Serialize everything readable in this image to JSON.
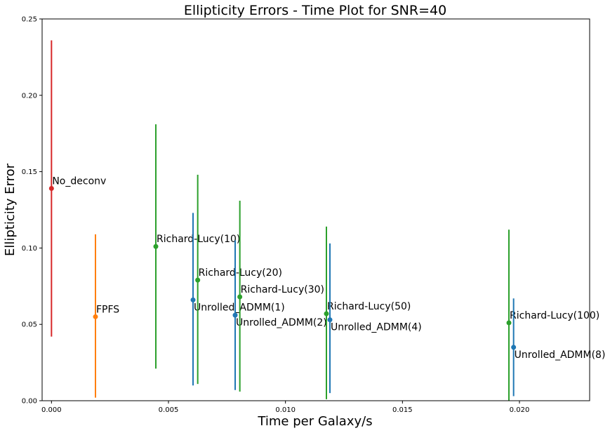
{
  "chart_data": {
    "type": "scatter",
    "title": "Ellipticity Errors - Time Plot for SNR=40",
    "xlabel": "Time per Galaxy/s",
    "ylabel": "Ellipticity Error",
    "xlim": [
      -0.0004,
      0.023
    ],
    "ylim": [
      0.0,
      0.25
    ],
    "xticks": [
      0.0,
      0.005,
      0.01,
      0.015,
      0.02
    ],
    "xtick_labels": [
      "0.000",
      "0.005",
      "0.010",
      "0.015",
      "0.020"
    ],
    "yticks": [
      0.0,
      0.05,
      0.1,
      0.15,
      0.2,
      0.25
    ],
    "ytick_labels": [
      "0.00",
      "0.05",
      "0.10",
      "0.15",
      "0.20",
      "0.25"
    ],
    "grid": false,
    "legend": "none",
    "points": [
      {
        "label": "No_deconv",
        "x": 0.0,
        "y": 0.139,
        "err_low": 0.042,
        "err_high": 0.236,
        "color": "#d62728",
        "label_pos": "above-right"
      },
      {
        "label": "FPFS",
        "x": 0.00188,
        "y": 0.055,
        "err_low": 0.002,
        "err_high": 0.109,
        "color": "#ff7f0e",
        "label_pos": "above-right"
      },
      {
        "label": "Richard-Lucy(10)",
        "x": 0.00446,
        "y": 0.101,
        "err_low": 0.021,
        "err_high": 0.181,
        "color": "#2ca02c",
        "label_pos": "above-right"
      },
      {
        "label": "Unrolled_ADMM(1)",
        "x": 0.00605,
        "y": 0.066,
        "err_low": 0.01,
        "err_high": 0.123,
        "color": "#1f77b4",
        "label_pos": "below-right"
      },
      {
        "label": "Richard-Lucy(20)",
        "x": 0.00625,
        "y": 0.079,
        "err_low": 0.011,
        "err_high": 0.148,
        "color": "#2ca02c",
        "label_pos": "above-right"
      },
      {
        "label": "Unrolled_ADMM(2)",
        "x": 0.00785,
        "y": 0.056,
        "err_low": 0.007,
        "err_high": 0.105,
        "color": "#1f77b4",
        "label_pos": "below-right"
      },
      {
        "label": "Richard-Lucy(30)",
        "x": 0.00805,
        "y": 0.068,
        "err_low": 0.006,
        "err_high": 0.131,
        "color": "#2ca02c",
        "label_pos": "above-right"
      },
      {
        "label": "Richard-Lucy(50)",
        "x": 0.01175,
        "y": 0.057,
        "err_low": 0.001,
        "err_high": 0.114,
        "color": "#2ca02c",
        "label_pos": "above-right"
      },
      {
        "label": "Unrolled_ADMM(4)",
        "x": 0.0119,
        "y": 0.053,
        "err_low": 0.005,
        "err_high": 0.103,
        "color": "#1f77b4",
        "label_pos": "below-right"
      },
      {
        "label": "Richard-Lucy(100)",
        "x": 0.01955,
        "y": 0.051,
        "err_low": 0.0,
        "err_high": 0.112,
        "color": "#2ca02c",
        "label_pos": "above-right"
      },
      {
        "label": "Unrolled_ADMM(8)",
        "x": 0.01975,
        "y": 0.035,
        "err_low": 0.003,
        "err_high": 0.067,
        "color": "#1f77b4",
        "label_pos": "below-right"
      }
    ]
  }
}
